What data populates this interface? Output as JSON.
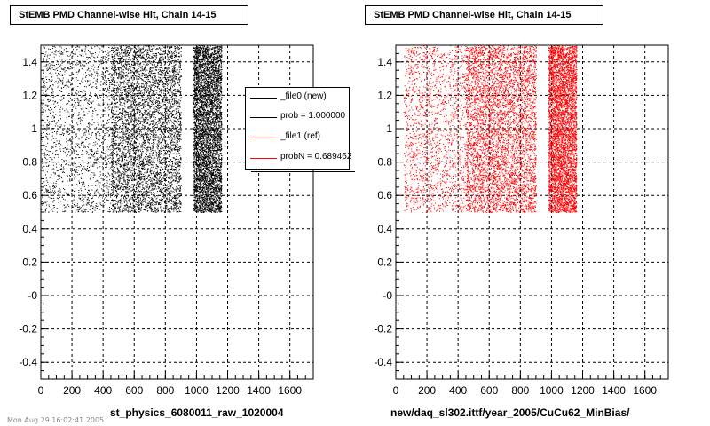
{
  "panels": [
    {
      "title": "StEMB PMD Channel-wise Hit, Chain 14-15",
      "xlabel": "st_physics_6080011_raw_1020004",
      "legend": [
        {
          "label": "_file0 (new)",
          "color": "#000000"
        },
        {
          "label": "prob = 1.000000",
          "color": "#000000"
        },
        {
          "label": "_file1 (ref)",
          "color": "#ff0000"
        },
        {
          "label": "probN = 0.689462",
          "color": "#ff0000"
        }
      ]
    },
    {
      "title": "StEMB PMD Channel-wise Hit, Chain 14-15",
      "xlabel": "new/daq_sl302.ittf/year_2005/CuCu62_MinBias/"
    }
  ],
  "footer_stamp": "Mon Aug 29 16:02:41 2005",
  "chart_data": [
    {
      "type": "scatter",
      "title": "StEMB PMD Channel-wise Hit, Chain 14-15",
      "xlabel": "st_physics_6080011_raw_1020004",
      "ylabel": "",
      "xlim": [
        0,
        1750
      ],
      "ylim": [
        -0.5,
        1.5
      ],
      "xticks": [
        "0",
        "200",
        "400",
        "600",
        "800",
        "1000",
        "1200",
        "1400",
        "1600"
      ],
      "yticks": [
        "-0.4",
        "-0.2",
        "-0",
        "0.2",
        "0.4",
        "0.6",
        "0.8",
        "1",
        "1.2",
        "1.4"
      ],
      "grid": true,
      "legend_position": "top-right",
      "series": [
        {
          "name": "_file0 (new)",
          "color": "#000000",
          "regions": [
            {
              "x": [
                0,
                450
              ],
              "y": [
                0.5,
                1.5
              ],
              "density": "sparse"
            },
            {
              "x": [
                450,
                900
              ],
              "y": [
                0.5,
                1.5
              ],
              "density": "dense"
            },
            {
              "x": [
                980,
                1160
              ],
              "y": [
                0.5,
                1.5
              ],
              "density": "dense"
            }
          ]
        }
      ]
    },
    {
      "type": "scatter",
      "title": "StEMB PMD Channel-wise Hit, Chain 14-15",
      "xlabel": "new/daq_sl302.ittf/year_2005/CuCu62_MinBias/",
      "ylabel": "",
      "xlim": [
        0,
        1750
      ],
      "ylim": [
        -0.5,
        1.5
      ],
      "xticks": [
        "0",
        "200",
        "400",
        "600",
        "800",
        "1000",
        "1200",
        "1400",
        "1600"
      ],
      "yticks": [
        "-0.4",
        "-0.2",
        "-0",
        "0.2",
        "0.4",
        "0.6",
        "0.8",
        "1",
        "1.2",
        "1.4"
      ],
      "grid": true,
      "series": [
        {
          "name": "_file1 (ref)",
          "color": "#ff0000",
          "regions": [
            {
              "x": [
                50,
                450
              ],
              "y": [
                0.5,
                1.5
              ],
              "density": "sparse"
            },
            {
              "x": [
                450,
                900
              ],
              "y": [
                0.5,
                1.5
              ],
              "density": "dense"
            },
            {
              "x": [
                980,
                1160
              ],
              "y": [
                0.5,
                1.5
              ],
              "density": "dense"
            }
          ]
        }
      ]
    }
  ]
}
